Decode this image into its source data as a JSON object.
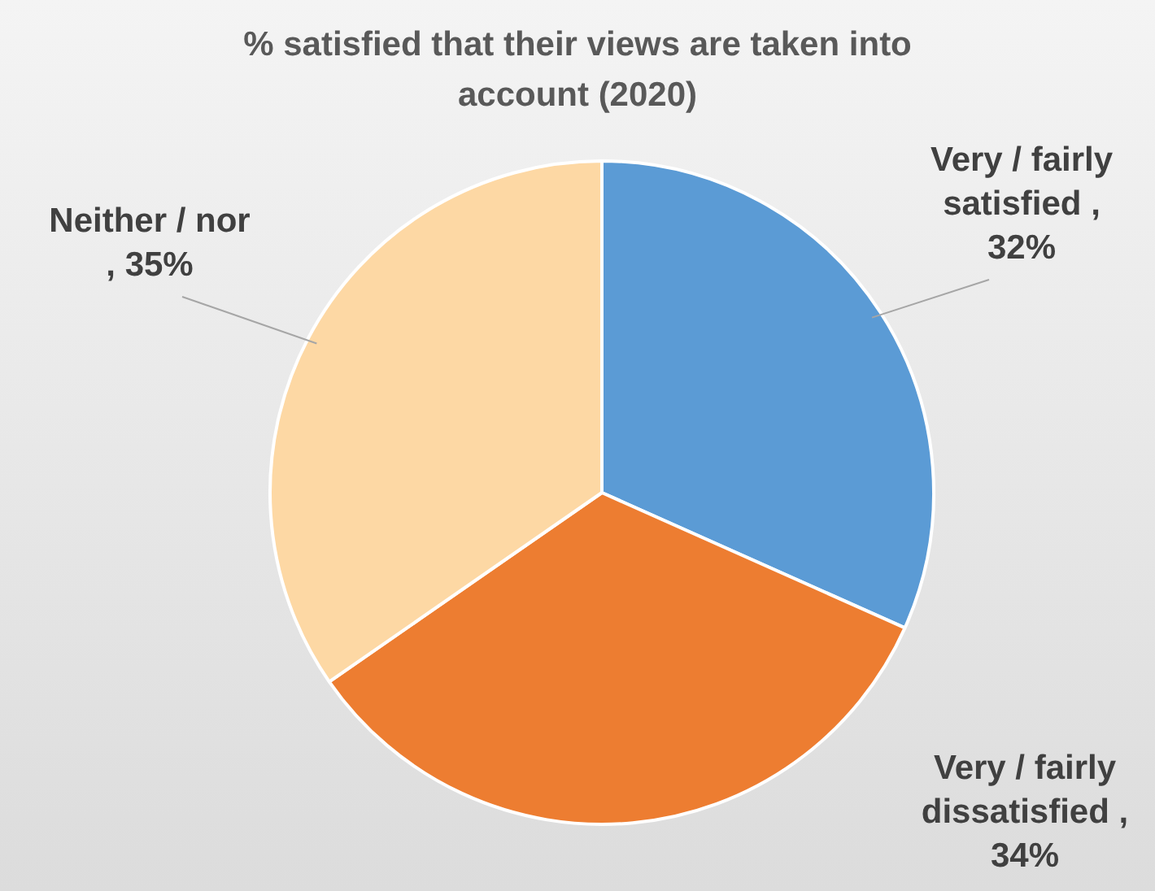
{
  "chart_data": {
    "type": "pie",
    "title": "% satisfied that their views are taken into account  (2020)",
    "categories": [
      "Very / fairly satisfied",
      "Very / fairly dissatisfied",
      "Neither / nor"
    ],
    "values": [
      32,
      34,
      35
    ],
    "colors": [
      "#5b9bd5",
      "#ed7d31",
      "#fdd8a4"
    ],
    "value_labels": [
      ", 32%",
      ", 34%",
      ", 35%"
    ],
    "legend": false
  }
}
